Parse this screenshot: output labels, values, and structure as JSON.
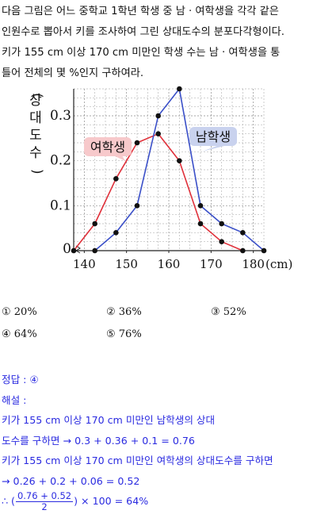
{
  "question": {
    "lines": [
      "다음 그림은 어느 중학교 1학년 학생 중 남 · 여학생을 각각 같은",
      "인원수로 뽑아서 키를 조사하여 그린 상대도수의 분포다각형이다.",
      "키가 155 cm 이상 170 cm 미만인 학생 수는 남 · 여학생을 통",
      "틀어 전체의 몇 %인지 구하여라."
    ]
  },
  "chart_data": {
    "type": "line",
    "ylabel": "(상대도수)",
    "xunit": "(cm)",
    "x_ticks": [
      "140",
      "150",
      "160",
      "170",
      "180"
    ],
    "y_ticks": [
      "0",
      "0.1",
      "0.2",
      "0.3"
    ],
    "xlim": [
      137.5,
      182.5
    ],
    "ylim": [
      0,
      0.36
    ],
    "grid": true,
    "series": [
      {
        "name": "여학생",
        "color": "#e0303a",
        "x": [
          137.5,
          142.5,
          147.5,
          152.5,
          157.5,
          162.5,
          167.5,
          172.5,
          177.5
        ],
        "y": [
          0,
          0.06,
          0.16,
          0.24,
          0.26,
          0.2,
          0.06,
          0.02,
          0
        ]
      },
      {
        "name": "남학생",
        "color": "#3a4fc8",
        "x": [
          142.5,
          147.5,
          152.5,
          157.5,
          162.5,
          167.5,
          172.5,
          177.5,
          182.5
        ],
        "y": [
          0,
          0.04,
          0.1,
          0.3,
          0.36,
          0.1,
          0.06,
          0.04,
          0
        ]
      }
    ]
  },
  "choices": [
    "① 20%",
    "② 36%",
    "③ 52%",
    "④ 64%",
    "⑤ 76%"
  ],
  "solution": {
    "answer": "정답 : ④",
    "heading": "해설 :",
    "lines": [
      "키가 155 cm 이상 170 cm 미만인 남학생의 상대",
      "도수를 구하면 → 0.3 + 0.36 + 0.1 = 0.76",
      "키가 155 cm 이상 170 cm 미만인 여학생의 상대도수를 구하면",
      "→ 0.26 + 0.2 + 0.06 = 0.52"
    ],
    "final_prefix": "∴ (",
    "frac_num": "0.76 + 0.52",
    "frac_den": "2",
    "final_suffix": ") × 100 = 64%"
  },
  "colors": {
    "female": "#e0303a",
    "male": "#3a4fc8",
    "solution": "#2a2ae0",
    "female_label_bg": "#f7c9cb",
    "male_label_bg": "#c9d2ee"
  }
}
